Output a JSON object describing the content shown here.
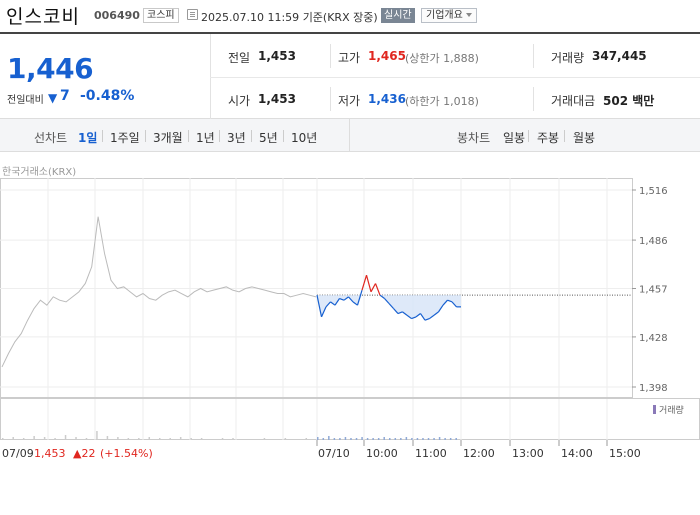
{
  "header": {
    "stock_name": "인스코비",
    "stock_code": "006490",
    "market": "코스피",
    "timestamp": "2025.07.10 11:59",
    "basis": "기준(KRX 장중)",
    "realtime": "실시간",
    "company_info": "기업개요"
  },
  "summary": {
    "price": "1,446",
    "change_label": "전일대비",
    "change_value": "7",
    "change_percent": "-0.48%",
    "prev_close_label": "전일",
    "prev_close": "1,453",
    "open_label": "시가",
    "open": "1,453",
    "high_label": "고가",
    "high": "1,465",
    "upper_limit": "(상한가 1,888)",
    "low_label": "저가",
    "low": "1,436",
    "lower_limit": "(하한가 1,018)",
    "volume_label": "거래량",
    "volume": "347,445",
    "amount_label": "거래대금",
    "amount": "502",
    "amount_unit": "백만"
  },
  "periods": {
    "line_label": "선차트",
    "line_items": [
      "1일",
      "1주일",
      "3개월",
      "1년",
      "3년",
      "5년",
      "10년"
    ],
    "active": "1일",
    "candle_label": "봉차트",
    "candle_items": [
      "일봉",
      "주봉",
      "월봉"
    ]
  },
  "chart": {
    "source": "한국거래소(KRX)",
    "volume_legend": "거래량",
    "prev_day_info": "07/09",
    "prev_close_text": "1,453",
    "prev_change_text": "22",
    "prev_change_pct": "(+1.54%)"
  },
  "chart_data": {
    "type": "line",
    "y_ticks": [
      "1,516",
      "1,486",
      "1,457",
      "1,428",
      "1,398"
    ],
    "y_tick_values": [
      1516,
      1486,
      1457,
      1428,
      1398
    ],
    "x_ticks": [
      "07/10",
      "10:00",
      "11:00",
      "12:00",
      "13:00",
      "14:00",
      "15:00"
    ],
    "ylim": [
      1398,
      1516
    ],
    "reference_price": 1453,
    "prev_day_series": [
      1410,
      1418,
      1425,
      1430,
      1438,
      1445,
      1450,
      1447,
      1452,
      1450,
      1449,
      1452,
      1455,
      1460,
      1470,
      1500,
      1478,
      1462,
      1457,
      1458,
      1455,
      1452,
      1454,
      1451,
      1450,
      1453,
      1455,
      1456,
      1454,
      1452,
      1455,
      1457,
      1455,
      1456,
      1457,
      1458,
      1456,
      1455,
      1457,
      1458,
      1457,
      1456,
      1455,
      1454,
      1454,
      1452,
      1453,
      1454,
      1453,
      1452
    ],
    "today_series": [
      1453,
      1440,
      1446,
      1449,
      1447,
      1451,
      1450,
      1452,
      1449,
      1447,
      1456,
      1465,
      1455,
      1460,
      1453,
      1451,
      1448,
      1445,
      1442,
      1443,
      1441,
      1439,
      1440,
      1442,
      1438,
      1439,
      1441,
      1443,
      1447,
      1450,
      1449,
      1446,
      1446
    ],
    "volume_series": [
      2,
      3,
      2,
      4,
      3,
      2,
      5,
      3,
      2,
      9,
      4,
      3,
      2,
      2,
      3,
      2,
      2,
      3,
      2,
      2,
      1,
      2,
      2,
      1,
      1,
      2,
      1,
      2,
      1,
      2
    ],
    "today_volume_series": [
      3,
      2,
      4,
      2,
      2,
      3,
      2,
      2,
      3,
      2,
      2,
      2,
      3,
      2,
      2,
      2,
      3,
      2,
      2,
      2,
      2,
      2,
      3,
      2,
      2,
      2
    ]
  },
  "colors": {
    "up": "#e0261f",
    "down": "#1760d0",
    "prev_line": "#bbbbbb",
    "fill": "#d6e4f7"
  }
}
